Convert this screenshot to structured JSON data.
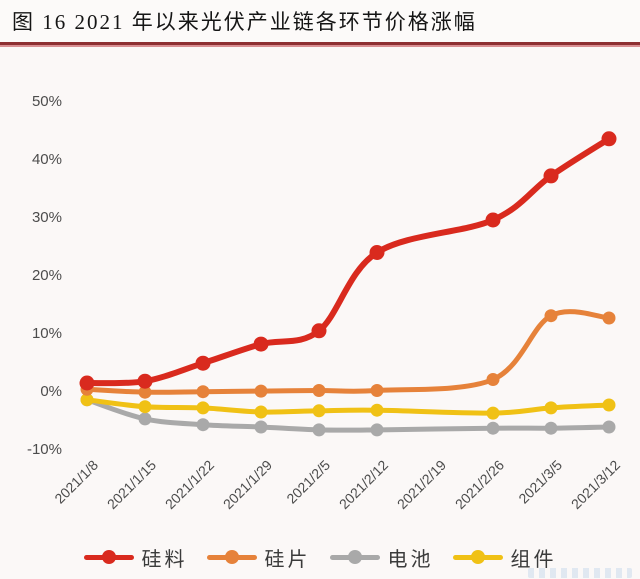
{
  "header": {
    "title": "图 16 2021 年以来光伏产业链各环节价格涨幅"
  },
  "colors": {
    "background": "#fbf8f7",
    "rule_dark": "#8e2f32",
    "rule_light": "#d98f93",
    "axis_text": "#4c4c4c",
    "legend_text": "#3b3b3b"
  },
  "chart_data": {
    "type": "line",
    "title": "图 16 2021 年以来光伏产业链各环节价格涨幅",
    "categories": [
      "2021/1/8",
      "2021/1/15",
      "2021/1/22",
      "2021/1/29",
      "2021/2/5",
      "2021/2/12",
      "2021/2/19",
      "2021/2/26",
      "2021/3/5",
      "2021/3/12"
    ],
    "series": [
      {
        "name": "硅料",
        "color": "#d92a1e",
        "values": [
          1.3,
          1.6,
          4.7,
          8.0,
          10.3,
          23.8,
          null,
          29.4,
          37.0,
          43.4
        ]
      },
      {
        "name": "硅片",
        "color": "#e6823a",
        "values": [
          0.2,
          -0.3,
          -0.2,
          -0.1,
          0.0,
          0.0,
          null,
          1.9,
          12.9,
          12.5
        ]
      },
      {
        "name": "电池",
        "color": "#a9a9a9",
        "values": [
          -1.6,
          -4.9,
          -5.9,
          -6.3,
          -6.8,
          -6.8,
          null,
          -6.5,
          -6.5,
          -6.3
        ]
      },
      {
        "name": "组件",
        "color": "#f0c115",
        "values": [
          -1.6,
          -2.8,
          -3.0,
          -3.7,
          -3.5,
          -3.4,
          null,
          -3.9,
          -3.0,
          -2.5
        ]
      }
    ],
    "z_order": [
      2,
      3,
      1,
      0
    ],
    "yticks": [
      50,
      40,
      30,
      20,
      10,
      0,
      -10
    ],
    "ytick_suffix": "%",
    "ylim": [
      -10,
      50
    ],
    "xlabel": "",
    "ylabel": "",
    "grid": false,
    "legend_position": "bottom"
  }
}
